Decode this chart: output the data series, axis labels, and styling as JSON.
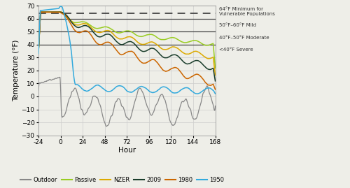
{
  "title": "",
  "xlabel": "Hour",
  "ylabel": "Temperature (°F)",
  "xlim": [
    -24,
    168
  ],
  "ylim": [
    -30,
    70
  ],
  "yticks": [
    -30,
    -20,
    -10,
    0,
    10,
    20,
    30,
    40,
    50,
    60,
    70
  ],
  "xticks": [
    -24,
    0,
    24,
    48,
    72,
    96,
    120,
    144,
    168
  ],
  "hlines": [
    60,
    50,
    40
  ],
  "dashed_hline": 64,
  "annotations": [
    {
      "y": 65.5,
      "text": "64°F Minimum for\nVulnerable Populations"
    },
    {
      "y": 55,
      "text": "50°F–60°F Mild"
    },
    {
      "y": 45,
      "text": "40°F–50°F Moderate"
    },
    {
      "y": 36,
      "text": "<40°F Severe"
    }
  ],
  "background_color": "#eeeee8",
  "grid_color": "#cccccc",
  "line_colors": {
    "Outdoor": "#888888",
    "Passive": "#99cc22",
    "NZER": "#ddaa00",
    "2009": "#1a3d2b",
    "1980": "#cc6600",
    "1950": "#33aadd"
  },
  "legend_labels": [
    "Outdoor",
    "Passive",
    "NZER",
    "2009",
    "1980",
    "1950"
  ]
}
